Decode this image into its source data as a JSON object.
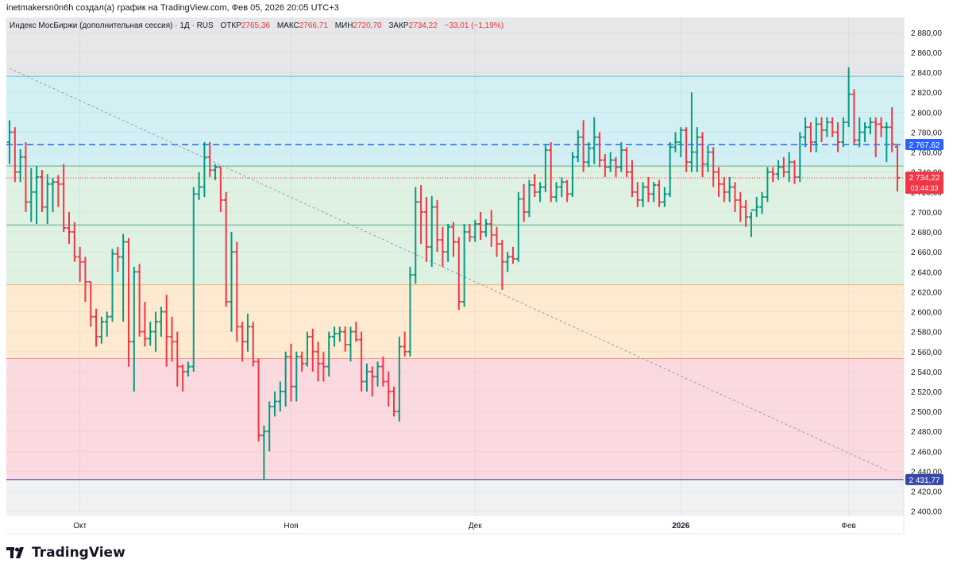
{
  "header": {
    "author_line": "inetmakersn0n6h создал(а) график на TradingView.com, Фев 05, 2026 20:05 UTC+3"
  },
  "legend": {
    "symbol": "Индекс МосБиржи (дополнительная сессия) · 1Д · RUS",
    "open_label": "ОТКР",
    "open_value": "2765,36",
    "high_label": "МАКС",
    "high_value": "2766,71",
    "low_label": "МИН",
    "low_value": "2720,70",
    "close_label": "ЗАКР",
    "close_value": "2734,22",
    "change": "−33,01 (−1,19%)"
  },
  "logo": {
    "text": "TradingView"
  },
  "colors": {
    "up": "#089981",
    "down": "#f23645",
    "zone_top": "#e3e4e6",
    "zone_cyan": "#cdeef2",
    "zone_green": "#dcefe0",
    "zone_orange": "#fde8cc",
    "zone_red": "#f9d6da",
    "level_blue": "#2962ff",
    "price_red": "#f23645"
  },
  "chart_data": {
    "type": "ohlc",
    "ylim": [
      2395,
      2895
    ],
    "y_ticks": [
      "2 880,00",
      "2 860,00",
      "2 840,00",
      "2 820,00",
      "2 800,00",
      "2 780,00",
      "2 760,00",
      "2 740,00",
      "2 720,00",
      "2 700,00",
      "2 680,00",
      "2 660,00",
      "2 640,00",
      "2 620,00",
      "2 600,00",
      "2 580,00",
      "2 560,00",
      "2 540,00",
      "2 520,00",
      "2 500,00",
      "2 480,00",
      "2 460,00",
      "2 440,00",
      "2 420,00",
      "2 400,00"
    ],
    "x_labels": [
      {
        "label": "Окт",
        "bar": 13
      },
      {
        "label": "Ноя",
        "bar": 52
      },
      {
        "label": "Дек",
        "bar": 86
      },
      {
        "label": "2026",
        "bar": 124
      },
      {
        "label": "Фев",
        "bar": 155
      }
    ],
    "zones": [
      {
        "from": 2836,
        "to": 2895,
        "color": "zone_top"
      },
      {
        "from": 2746,
        "to": 2836,
        "color": "zone_cyan"
      },
      {
        "from": 2687,
        "to": 2746,
        "color": "zone_green"
      },
      {
        "from": 2627,
        "to": 2687,
        "color": "zone_green"
      },
      {
        "from": 2553,
        "to": 2627,
        "color": "zone_orange"
      },
      {
        "from": 2431.77,
        "to": 2553,
        "color": "zone_red"
      },
      {
        "from": 2395,
        "to": 2431.77,
        "color": "zone_top_light"
      }
    ],
    "level_lines": [
      {
        "price": 2767.62,
        "label": "2 767,62",
        "style": "dashed"
      },
      {
        "price": 2431.77,
        "label": "2 431,77",
        "style": "solid"
      }
    ],
    "last_price": {
      "price": 2734.22,
      "label": "2 734,22",
      "countdown": "03:44:33"
    },
    "trendline": {
      "from": {
        "bar": 0,
        "price": 2844
      },
      "to": {
        "bar": 162,
        "price": 2441
      }
    },
    "bars": [
      [
        2770,
        2792,
        2748,
        2780
      ],
      [
        2780,
        2785,
        2730,
        2740
      ],
      [
        2740,
        2763,
        2730,
        2755
      ],
      [
        2755,
        2770,
        2700,
        2710
      ],
      [
        2710,
        2744,
        2690,
        2720
      ],
      [
        2720,
        2746,
        2688,
        2735
      ],
      [
        2735,
        2742,
        2700,
        2705
      ],
      [
        2705,
        2738,
        2688,
        2728
      ],
      [
        2728,
        2734,
        2700,
        2730
      ],
      [
        2730,
        2737,
        2705,
        2728
      ],
      [
        2728,
        2748,
        2680,
        2684
      ],
      [
        2684,
        2700,
        2668,
        2680
      ],
      [
        2680,
        2690,
        2650,
        2655
      ],
      [
        2655,
        2665,
        2630,
        2650
      ],
      [
        2650,
        2655,
        2610,
        2630
      ],
      [
        2630,
        2630,
        2585,
        2595
      ],
      [
        2595,
        2603,
        2565,
        2575
      ],
      [
        2575,
        2595,
        2568,
        2590
      ],
      [
        2590,
        2600,
        2575,
        2595
      ],
      [
        2595,
        2663,
        2590,
        2658
      ],
      [
        2658,
        2665,
        2640,
        2655
      ],
      [
        2655,
        2678,
        2590,
        2670
      ],
      [
        2670,
        2674,
        2545,
        2570
      ],
      [
        2570,
        2645,
        2520,
        2640
      ],
      [
        2640,
        2648,
        2575,
        2580
      ],
      [
        2580,
        2610,
        2565,
        2573
      ],
      [
        2573,
        2590,
        2566,
        2580
      ],
      [
        2580,
        2600,
        2560,
        2590
      ],
      [
        2590,
        2605,
        2575,
        2600
      ],
      [
        2600,
        2617,
        2545,
        2575
      ],
      [
        2575,
        2595,
        2550,
        2570
      ],
      [
        2570,
        2580,
        2525,
        2545
      ],
      [
        2545,
        2547,
        2520,
        2540
      ],
      [
        2540,
        2550,
        2535,
        2545
      ],
      [
        2545,
        2725,
        2540,
        2718
      ],
      [
        2718,
        2740,
        2712,
        2725
      ],
      [
        2725,
        2770,
        2715,
        2755
      ],
      [
        2755,
        2770,
        2735,
        2742
      ],
      [
        2742,
        2748,
        2732,
        2745
      ],
      [
        2745,
        2745,
        2700,
        2712
      ],
      [
        2712,
        2720,
        2605,
        2610
      ],
      [
        2610,
        2680,
        2580,
        2660
      ],
      [
        2660,
        2670,
        2570,
        2585
      ],
      [
        2585,
        2590,
        2550,
        2570
      ],
      [
        2570,
        2598,
        2560,
        2585
      ],
      [
        2585,
        2590,
        2545,
        2550
      ],
      [
        2550,
        2553,
        2470,
        2476
      ],
      [
        2476,
        2486,
        2432,
        2480
      ],
      [
        2480,
        2510,
        2460,
        2505
      ],
      [
        2505,
        2520,
        2495,
        2510
      ],
      [
        2510,
        2530,
        2500,
        2520
      ],
      [
        2520,
        2560,
        2505,
        2555
      ],
      [
        2555,
        2568,
        2510,
        2525
      ],
      [
        2525,
        2560,
        2510,
        2555
      ],
      [
        2555,
        2560,
        2540,
        2548
      ],
      [
        2548,
        2580,
        2545,
        2575
      ],
      [
        2575,
        2583,
        2540,
        2560
      ],
      [
        2560,
        2570,
        2530,
        2548
      ],
      [
        2548,
        2560,
        2530,
        2545
      ],
      [
        2545,
        2580,
        2535,
        2575
      ],
      [
        2575,
        2585,
        2565,
        2578
      ],
      [
        2578,
        2585,
        2570,
        2580
      ],
      [
        2580,
        2585,
        2560,
        2567
      ],
      [
        2567,
        2585,
        2550,
        2580
      ],
      [
        2580,
        2590,
        2570,
        2572
      ],
      [
        2572,
        2580,
        2520,
        2530
      ],
      [
        2530,
        2548,
        2520,
        2540
      ],
      [
        2540,
        2545,
        2515,
        2535
      ],
      [
        2535,
        2550,
        2525,
        2545
      ],
      [
        2545,
        2555,
        2525,
        2530
      ],
      [
        2530,
        2540,
        2505,
        2520
      ],
      [
        2520,
        2525,
        2495,
        2500
      ],
      [
        2500,
        2575,
        2490,
        2565
      ],
      [
        2565,
        2580,
        2555,
        2560
      ],
      [
        2560,
        2645,
        2555,
        2637
      ],
      [
        2637,
        2725,
        2628,
        2710
      ],
      [
        2710,
        2727,
        2668,
        2700
      ],
      [
        2700,
        2715,
        2650,
        2665
      ],
      [
        2665,
        2716,
        2645,
        2705
      ],
      [
        2705,
        2712,
        2660,
        2672
      ],
      [
        2672,
        2685,
        2645,
        2660
      ],
      [
        2660,
        2688,
        2650,
        2685
      ],
      [
        2685,
        2690,
        2655,
        2670
      ],
      [
        2670,
        2675,
        2602,
        2610
      ],
      [
        2610,
        2688,
        2605,
        2680
      ],
      [
        2680,
        2688,
        2670,
        2675
      ],
      [
        2675,
        2692,
        2670,
        2688
      ],
      [
        2688,
        2700,
        2672,
        2680
      ],
      [
        2680,
        2693,
        2675,
        2688
      ],
      [
        2688,
        2702,
        2665,
        2677
      ],
      [
        2677,
        2685,
        2655,
        2668
      ],
      [
        2668,
        2672,
        2622,
        2650
      ],
      [
        2650,
        2660,
        2640,
        2655
      ],
      [
        2655,
        2665,
        2648,
        2653
      ],
      [
        2653,
        2720,
        2650,
        2713
      ],
      [
        2713,
        2728,
        2690,
        2700
      ],
      [
        2700,
        2732,
        2695,
        2727
      ],
      [
        2727,
        2738,
        2715,
        2720
      ],
      [
        2720,
        2730,
        2710,
        2725
      ],
      [
        2725,
        2768,
        2720,
        2762
      ],
      [
        2762,
        2770,
        2710,
        2715
      ],
      [
        2715,
        2730,
        2710,
        2725
      ],
      [
        2725,
        2735,
        2715,
        2730
      ],
      [
        2730,
        2732,
        2710,
        2718
      ],
      [
        2718,
        2760,
        2715,
        2755
      ],
      [
        2755,
        2782,
        2750,
        2775
      ],
      [
        2775,
        2792,
        2740,
        2750
      ],
      [
        2750,
        2770,
        2745,
        2764
      ],
      [
        2764,
        2795,
        2748,
        2775
      ],
      [
        2775,
        2780,
        2745,
        2752
      ],
      [
        2752,
        2758,
        2735,
        2745
      ],
      [
        2745,
        2760,
        2740,
        2752
      ],
      [
        2752,
        2755,
        2735,
        2745
      ],
      [
        2745,
        2770,
        2740,
        2762
      ],
      [
        2762,
        2765,
        2735,
        2740
      ],
      [
        2740,
        2752,
        2715,
        2720
      ],
      [
        2720,
        2730,
        2705,
        2712
      ],
      [
        2712,
        2730,
        2705,
        2725
      ],
      [
        2725,
        2735,
        2710,
        2718
      ],
      [
        2718,
        2730,
        2710,
        2727
      ],
      [
        2727,
        2732,
        2705,
        2710
      ],
      [
        2710,
        2725,
        2705,
        2718
      ],
      [
        2718,
        2770,
        2715,
        2765
      ],
      [
        2765,
        2780,
        2760,
        2770
      ],
      [
        2770,
        2785,
        2755,
        2782
      ],
      [
        2782,
        2785,
        2740,
        2750
      ],
      [
        2750,
        2820,
        2740,
        2760
      ],
      [
        2760,
        2785,
        2740,
        2775
      ],
      [
        2775,
        2780,
        2735,
        2748
      ],
      [
        2748,
        2767,
        2740,
        2760
      ],
      [
        2760,
        2765,
        2725,
        2740
      ],
      [
        2740,
        2745,
        2715,
        2728
      ],
      [
        2728,
        2735,
        2710,
        2720
      ],
      [
        2720,
        2735,
        2710,
        2725
      ],
      [
        2725,
        2730,
        2700,
        2712
      ],
      [
        2712,
        2720,
        2690,
        2705
      ],
      [
        2705,
        2712,
        2685,
        2695
      ],
      [
        2695,
        2700,
        2675,
        2702
      ],
      [
        2702,
        2715,
        2695,
        2705
      ],
      [
        2705,
        2720,
        2698,
        2715
      ],
      [
        2715,
        2745,
        2710,
        2740
      ],
      [
        2740,
        2745,
        2730,
        2738
      ],
      [
        2738,
        2752,
        2732,
        2745
      ],
      [
        2745,
        2755,
        2735,
        2740
      ],
      [
        2740,
        2760,
        2730,
        2750
      ],
      [
        2750,
        2752,
        2728,
        2735
      ],
      [
        2735,
        2780,
        2730,
        2775
      ],
      [
        2775,
        2795,
        2765,
        2785
      ],
      [
        2785,
        2790,
        2760,
        2770
      ],
      [
        2770,
        2795,
        2760,
        2788
      ],
      [
        2788,
        2795,
        2770,
        2782
      ],
      [
        2782,
        2795,
        2775,
        2790
      ],
      [
        2790,
        2795,
        2775,
        2780
      ],
      [
        2780,
        2790,
        2760,
        2770
      ],
      [
        2770,
        2795,
        2765,
        2790
      ],
      [
        2790,
        2845,
        2785,
        2818
      ],
      [
        2818,
        2823,
        2768,
        2772
      ],
      [
        2772,
        2795,
        2765,
        2780
      ],
      [
        2780,
        2790,
        2770,
        2785
      ],
      [
        2785,
        2795,
        2778,
        2790
      ],
      [
        2790,
        2795,
        2755,
        2788
      ],
      [
        2788,
        2795,
        2775,
        2785
      ],
      [
        2785,
        2790,
        2750,
        2785
      ],
      [
        2785,
        2805,
        2760,
        2768
      ],
      [
        2765.36,
        2766.71,
        2720.7,
        2734.22
      ]
    ]
  }
}
